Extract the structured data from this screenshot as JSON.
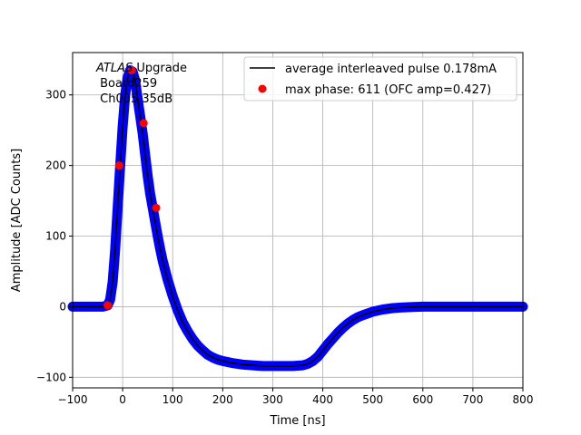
{
  "chart_data": {
    "type": "scatter",
    "xlabel": "Time [ns]",
    "ylabel": "Amplitude [ADC Counts]",
    "xlim": [
      -100,
      800
    ],
    "ylim": [
      -115,
      360
    ],
    "xticks": [
      -100,
      0,
      100,
      200,
      300,
      400,
      500,
      600,
      700,
      800
    ],
    "yticks": [
      -100,
      0,
      100,
      200,
      300
    ],
    "grid": true,
    "legend_position": "top-right",
    "annotation": {
      "italic": "ATLAS",
      "line1_rest": " Upgrade",
      "line2": " Board259",
      "line3": " Ch005 35dB"
    },
    "series": [
      {
        "name": "average interleaved pulse 0.178mA",
        "kind": "line",
        "color": "#000000",
        "x": [
          -100,
          -40,
          -30,
          -25,
          -20,
          -15,
          -10,
          -5,
          0,
          5,
          10,
          15,
          20,
          25,
          30,
          35,
          40,
          45,
          50,
          55,
          60,
          65,
          70,
          75,
          80,
          90,
          100,
          110,
          120,
          130,
          140,
          150,
          160,
          170,
          180,
          190,
          200,
          220,
          240,
          260,
          280,
          300,
          320,
          340,
          360,
          370,
          380,
          390,
          400,
          410,
          420,
          430,
          440,
          450,
          460,
          470,
          480,
          500,
          520,
          540,
          560,
          580,
          600,
          650,
          700,
          750,
          800
        ],
        "y": [
          0,
          0,
          2,
          10,
          35,
          80,
          140,
          200,
          255,
          300,
          325,
          335,
          333,
          320,
          295,
          270,
          245,
          215,
          185,
          160,
          140,
          120,
          100,
          82,
          65,
          38,
          15,
          -5,
          -22,
          -35,
          -46,
          -55,
          -62,
          -68,
          -72,
          -75,
          -77,
          -80,
          -82,
          -83,
          -84,
          -84,
          -84,
          -84,
          -83,
          -81,
          -77,
          -71,
          -62,
          -53,
          -45,
          -37,
          -30,
          -24,
          -19,
          -15,
          -12,
          -7,
          -4,
          -2,
          -1,
          -0.5,
          0,
          0,
          0,
          0,
          0
        ]
      },
      {
        "name": "max phase: 611 (OFC amp=0.427)",
        "kind": "points",
        "color": "#ff0000",
        "x": [
          -30,
          -7,
          18,
          42,
          67
        ],
        "y": [
          2,
          200,
          335,
          260,
          140
        ]
      },
      {
        "name": "",
        "kind": "band",
        "color": "#0000ff",
        "x": [
          -100,
          -40,
          -30,
          -25,
          -20,
          -15,
          -10,
          -5,
          0,
          5,
          10,
          15,
          20,
          25,
          30,
          35,
          40,
          45,
          50,
          55,
          60,
          65,
          70,
          75,
          80,
          90,
          100,
          110,
          120,
          130,
          140,
          150,
          160,
          170,
          180,
          190,
          200,
          220,
          240,
          260,
          280,
          300,
          320,
          340,
          360,
          370,
          380,
          390,
          400,
          410,
          420,
          430,
          440,
          450,
          460,
          470,
          480,
          500,
          520,
          540,
          560,
          580,
          600,
          650,
          700,
          750,
          800
        ],
        "y": [
          0,
          0,
          2,
          10,
          35,
          80,
          140,
          200,
          255,
          300,
          325,
          335,
          333,
          320,
          295,
          270,
          245,
          215,
          185,
          160,
          140,
          120,
          100,
          82,
          65,
          38,
          15,
          -5,
          -22,
          -35,
          -46,
          -55,
          -62,
          -68,
          -72,
          -75,
          -77,
          -80,
          -82,
          -83,
          -84,
          -84,
          -84,
          -84,
          -83,
          -81,
          -77,
          -71,
          -62,
          -53,
          -45,
          -37,
          -30,
          -24,
          -19,
          -15,
          -12,
          -7,
          -4,
          -2,
          -1,
          -0.5,
          0,
          0,
          0,
          0,
          0
        ]
      }
    ]
  }
}
